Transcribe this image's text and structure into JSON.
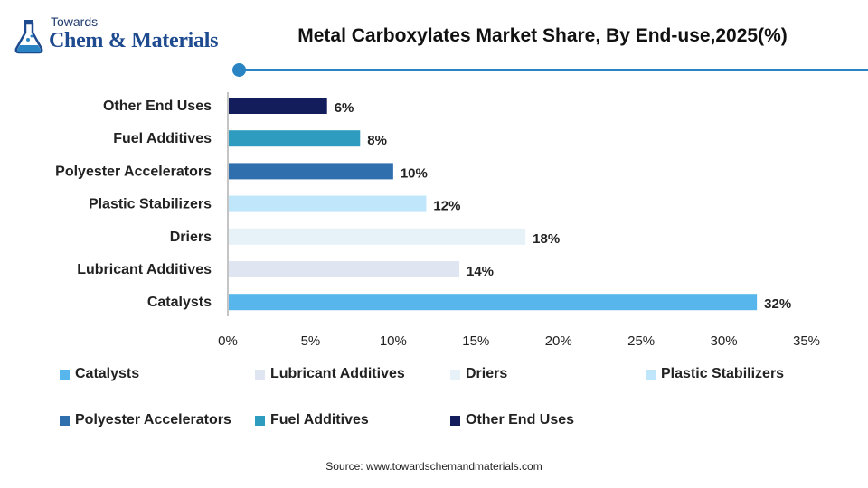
{
  "logo": {
    "small": "Towards",
    "main": "Chem & Materials"
  },
  "chart_data": {
    "type": "bar",
    "orientation": "horizontal",
    "title": "Metal Carboxylates Market Share, By End-use,2025(%)",
    "categories": [
      "Other End Uses",
      "Fuel Additives",
      "Polyester Accelerators",
      "Plastic Stabilizers",
      "Driers",
      "Lubricant Additives",
      "Catalysts"
    ],
    "values": [
      6,
      8,
      10,
      12,
      18,
      14,
      32
    ],
    "value_labels": [
      "6%",
      "8%",
      "10%",
      "12%",
      "18%",
      "14%",
      "32%"
    ],
    "colors": [
      "#141d5b",
      "#2e9cbf",
      "#2f6fad",
      "#bfe6fa",
      "#e6f1f8",
      "#dfe6f1",
      "#57b7ec"
    ],
    "xlim": [
      0,
      35
    ],
    "xticks": [
      0,
      5,
      10,
      15,
      20,
      25,
      30,
      35
    ],
    "xtick_labels": [
      "0%",
      "5%",
      "10%",
      "15%",
      "20%",
      "25%",
      "30%",
      "35%"
    ],
    "xlabel": "",
    "ylabel": "",
    "grid": false,
    "legend_position": "bottom",
    "legend": [
      {
        "name": "Catalysts",
        "color": "#57b7ec"
      },
      {
        "name": "Lubricant Additives",
        "color": "#dfe6f1"
      },
      {
        "name": "Driers",
        "color": "#e6f1f8"
      },
      {
        "name": "Plastic Stabilizers",
        "color": "#bfe6fa"
      },
      {
        "name": "Polyester Accelerators",
        "color": "#2f6fad"
      },
      {
        "name": "Fuel Additives",
        "color": "#2e9cbf"
      },
      {
        "name": "Other End Uses",
        "color": "#141d5b"
      }
    ]
  },
  "source": "Source: www.towardschemandmaterials.com",
  "accent_color": "#2a84c4"
}
